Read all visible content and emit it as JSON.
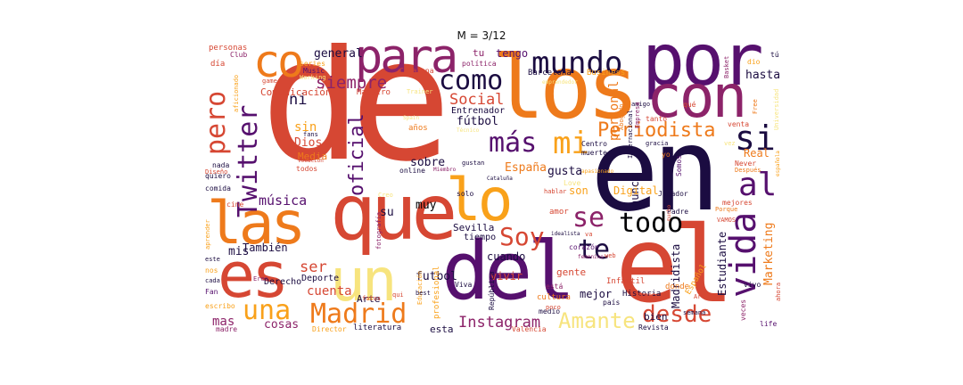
{
  "title": "M = 3/12",
  "palette": {
    "darkest": "#1b0c41",
    "purple": "#56106e",
    "magenta": "#8c2369",
    "red": "#d64733",
    "orange": "#ee7a1b",
    "amber": "#f9a11a",
    "yellow": "#f7e47e",
    "black": "#000004"
  },
  "words": [
    {
      "text": "de",
      "color": "#d64733"
    },
    {
      "text": "en",
      "color": "#1b0c41"
    },
    {
      "text": "los",
      "color": "#ee7a1b"
    },
    {
      "text": "por",
      "color": "#56106e"
    },
    {
      "text": "con",
      "color": "#8c2369"
    },
    {
      "text": "el",
      "color": "#d64733"
    },
    {
      "text": "del",
      "color": "#56106e"
    },
    {
      "text": "que",
      "color": "#d64733"
    },
    {
      "text": "las",
      "color": "#ee7a1b"
    },
    {
      "text": "es",
      "color": "#d64733"
    },
    {
      "text": "un",
      "color": "#f7e47e"
    },
    {
      "text": "lo",
      "color": "#f9a11a"
    },
    {
      "text": "para",
      "color": "#8c2369"
    },
    {
      "text": "co",
      "color": "#ee7a1b"
    },
    {
      "text": "mundo",
      "color": "#1b0c41"
    },
    {
      "text": "como",
      "color": "#1b0c41"
    },
    {
      "text": "pero",
      "color": "#d64733"
    },
    {
      "text": "Twitter",
      "color": "#56106e"
    },
    {
      "text": "más",
      "color": "#56106e"
    },
    {
      "text": "mi",
      "color": "#f9a11a"
    },
    {
      "text": "si",
      "color": "#1b0c41"
    },
    {
      "text": "al",
      "color": "#56106e"
    },
    {
      "text": "vida",
      "color": "#56106e"
    },
    {
      "text": "todo",
      "color": "#000004"
    },
    {
      "text": "se",
      "color": "#8c2369"
    },
    {
      "text": "te",
      "color": "#1b0c41"
    },
    {
      "text": "Soy",
      "color": "#d64733"
    },
    {
      "text": "Madrid",
      "color": "#ee7a1b"
    },
    {
      "text": "una",
      "color": "#f9a11a"
    },
    {
      "text": "desde",
      "color": "#d64733"
    },
    {
      "text": "Amante",
      "color": "#f7e47e"
    },
    {
      "text": "Periodista",
      "color": "#ee7a1b"
    },
    {
      "text": "oficial",
      "color": "#56106e"
    },
    {
      "text": "Instagram",
      "color": "#8c2369"
    },
    {
      "text": "siempre",
      "color": "#8c2369"
    },
    {
      "text": "Social",
      "color": "#d64733"
    },
    {
      "text": "ni",
      "color": "#1b0c41"
    },
    {
      "text": "general",
      "color": "#1b0c41"
    },
    {
      "text": "tengo",
      "color": "#56106e"
    },
    {
      "text": "tu",
      "color": "#8c2369"
    },
    {
      "text": "hasta",
      "color": "#1b0c41"
    },
    {
      "text": "personal",
      "color": "#ee7a1b"
    },
    {
      "text": "Comunicación",
      "color": "#d64733"
    },
    {
      "text": "Maestro",
      "color": "#d64733"
    },
    {
      "text": "Entrenador",
      "color": "#1b0c41"
    },
    {
      "text": "fútbol",
      "color": "#1b0c41"
    },
    {
      "text": "sin",
      "color": "#f9a11a"
    },
    {
      "text": "Dios",
      "color": "#d64733"
    },
    {
      "text": "Media",
      "color": "#ee7a1b"
    },
    {
      "text": "sobre",
      "color": "#1b0c41"
    },
    {
      "text": "España",
      "color": "#ee7a1b"
    },
    {
      "text": "gusta",
      "color": "#1b0c41"
    },
    {
      "text": "muy",
      "color": "#000004"
    },
    {
      "text": "música",
      "color": "#56106e"
    },
    {
      "text": "su",
      "color": "#1b0c41"
    },
    {
      "text": "vivir",
      "color": "#d64733"
    },
    {
      "text": "También",
      "color": "#1b0c41"
    },
    {
      "text": "mis",
      "color": "#1b0c41"
    },
    {
      "text": "ser",
      "color": "#d64733"
    },
    {
      "text": "cuenta",
      "color": "#d64733"
    },
    {
      "text": "mas",
      "color": "#8c2369"
    },
    {
      "text": "cosas",
      "color": "#8c2369"
    },
    {
      "text": "futbol",
      "color": "#1b0c41"
    },
    {
      "text": "Sevilla",
      "color": "#1b0c41"
    },
    {
      "text": "cuando",
      "color": "#1b0c41"
    },
    {
      "text": "mejor",
      "color": "#1b0c41"
    },
    {
      "text": "bien",
      "color": "#1b0c41"
    },
    {
      "text": "Estudiante",
      "color": "#1b0c41"
    },
    {
      "text": "Madridista",
      "color": "#1b0c41"
    },
    {
      "text": "Real",
      "color": "#ee7a1b"
    },
    {
      "text": "Marketing",
      "color": "#ee7a1b"
    },
    {
      "text": "nunca",
      "color": "#1b0c41"
    },
    {
      "text": "gente",
      "color": "#d64733"
    },
    {
      "text": "Digital",
      "color": "#f9a11a"
    },
    {
      "text": "esta",
      "color": "#1b0c41"
    },
    {
      "text": "Arte",
      "color": "#1b0c41"
    },
    {
      "text": "Derecho",
      "color": "#1b0c41"
    },
    {
      "text": "Deporte",
      "color": "#1b0c41"
    },
    {
      "text": "literatura",
      "color": "#1b0c41"
    },
    {
      "text": "profesional",
      "color": "#f9a11a"
    },
    {
      "text": "Historia",
      "color": "#1b0c41"
    },
    {
      "text": "online",
      "color": "#1b0c41"
    },
    {
      "text": "Barcelona",
      "color": "#1b0c41"
    },
    {
      "text": "Business",
      "color": "#f9a11a"
    },
    {
      "text": "Club",
      "color": "#8c2369"
    },
    {
      "text": "Music",
      "color": "#56106e"
    },
    {
      "text": "Catalana",
      "color": "#d64733"
    },
    {
      "text": "personas",
      "color": "#d64733"
    },
    {
      "text": "día",
      "color": "#d64733"
    },
    {
      "text": "series",
      "color": "#f9a11a"
    },
    {
      "text": "gamer",
      "color": "#d64733"
    },
    {
      "text": "política",
      "color": "#8c2369"
    },
    {
      "text": "Trainer",
      "color": "#f7e47e"
    },
    {
      "text": "años",
      "color": "#ee7a1b"
    },
    {
      "text": "Centro",
      "color": "#1b0c41"
    },
    {
      "text": "muerte",
      "color": "#1b0c41"
    },
    {
      "text": "tanto",
      "color": "#d64733"
    },
    {
      "text": "amigo",
      "color": "#1b0c41"
    },
    {
      "text": "gracia",
      "color": "#1b0c41"
    },
    {
      "text": "venta",
      "color": "#d64733"
    },
    {
      "text": "Never",
      "color": "#d64733"
    },
    {
      "text": "Después",
      "color": "#ee7a1b"
    },
    {
      "text": "Somos",
      "color": "#56106e"
    },
    {
      "text": "Jugador",
      "color": "#1b0c41"
    },
    {
      "text": "Padre",
      "color": "#1b0c41"
    },
    {
      "text": "mejores",
      "color": "#d64733"
    },
    {
      "text": "nada",
      "color": "#1b0c41"
    },
    {
      "text": "quiero",
      "color": "#1b0c41"
    },
    {
      "text": "comida",
      "color": "#1b0c41"
    },
    {
      "text": "Diseño",
      "color": "#d64733"
    },
    {
      "text": "cine",
      "color": "#d64733"
    },
    {
      "text": "todos",
      "color": "#d64733"
    },
    {
      "text": "fans",
      "color": "#1b0c41"
    },
    {
      "text": "Fan",
      "color": "#56106e"
    },
    {
      "text": "cada",
      "color": "#1b0c41"
    },
    {
      "text": "escribo",
      "color": "#f9a11a"
    },
    {
      "text": "madre",
      "color": "#8c2369"
    },
    {
      "text": "fotografía",
      "color": "#8c2369"
    },
    {
      "text": "Director",
      "color": "#f9a11a"
    },
    {
      "text": "Viva",
      "color": "#1b0c41"
    },
    {
      "text": "República",
      "color": "#1b0c41"
    },
    {
      "text": "Valencia",
      "color": "#d64733"
    },
    {
      "text": "Revista",
      "color": "#1b0c41"
    },
    {
      "text": "cultura",
      "color": "#ee7a1b"
    },
    {
      "text": "Infantil",
      "color": "#d64733"
    },
    {
      "text": "donde",
      "color": "#ee7a1b"
    },
    {
      "text": "veces",
      "color": "#8c2369"
    },
    {
      "text": "vivo",
      "color": "#1b0c41"
    },
    {
      "text": "life",
      "color": "#56106e"
    },
    {
      "text": "ahora",
      "color": "#d64733"
    },
    {
      "text": "Basket",
      "color": "#8c2369"
    },
    {
      "text": "semana",
      "color": "#1b0c41"
    },
    {
      "text": "medio",
      "color": "#1b0c41"
    },
    {
      "text": "país",
      "color": "#1b0c41"
    },
    {
      "text": "está",
      "color": "#8c2369"
    },
    {
      "text": "corazón",
      "color": "#56106e"
    },
    {
      "text": "amor",
      "color": "#d64733"
    },
    {
      "text": "son",
      "color": "#f9a11a"
    },
    {
      "text": "tiempo",
      "color": "#1b0c41"
    },
    {
      "text": "solo",
      "color": "#1b0c41"
    },
    {
      "text": "poco",
      "color": "#d64733"
    },
    {
      "text": "Educación",
      "color": "#f9a11a"
    },
    {
      "text": "Español",
      "color": "#f9a11a"
    },
    {
      "text": "Internacional",
      "color": "#1b0c41"
    },
    {
      "text": "Empresa",
      "color": "#8c2369"
    },
    {
      "text": "Abogado",
      "color": "#ee7a1b"
    },
    {
      "text": "qué",
      "color": "#d64733"
    },
    {
      "text": "aficionado",
      "color": "#f9a11a"
    },
    {
      "text": "Working",
      "color": "#f7e47e"
    },
    {
      "text": "vocación",
      "color": "#d64733"
    },
    {
      "text": "aprender",
      "color": "#f9a11a"
    },
    {
      "text": "este",
      "color": "#1b0c41"
    },
    {
      "text": "nos",
      "color": "#f9a11a"
    },
    {
      "text": "Eres",
      "color": "#8c2369"
    },
    {
      "text": "fotos",
      "color": "#d64733"
    },
    {
      "text": "qui",
      "color": "#d64733"
    },
    {
      "text": "best",
      "color": "#1b0c41"
    },
    {
      "text": "sense",
      "color": "#d64733"
    },
    {
      "text": "Art",
      "color": "#d64733"
    },
    {
      "text": "VAMOS",
      "color": "#d64733"
    },
    {
      "text": "Free",
      "color": "#ee7a1b"
    },
    {
      "text": "Universidad",
      "color": "#f7e47e"
    },
    {
      "text": "española",
      "color": "#f9a11a"
    },
    {
      "text": "Love",
      "color": "#f7e47e"
    },
    {
      "text": "Creo",
      "color": "#f7e47e"
    },
    {
      "text": "hablar",
      "color": "#d64733"
    },
    {
      "text": "Cataluña",
      "color": "#1b0c41"
    },
    {
      "text": "gustan",
      "color": "#1b0c41"
    },
    {
      "text": "Miembro",
      "color": "#8c2369"
    },
    {
      "text": "Técnico",
      "color": "#f7e47e"
    },
    {
      "text": "Spain",
      "color": "#f7e47e"
    },
    {
      "text": "idealista",
      "color": "#1b0c41"
    },
    {
      "text": "femenino",
      "color": "#8c2369"
    },
    {
      "text": "mucho",
      "color": "#d64733"
    },
    {
      "text": "Porque",
      "color": "#ee7a1b"
    },
    {
      "text": "tú",
      "color": "#1b0c41"
    },
    {
      "text": "dio",
      "color": "#f9a11a"
    },
    {
      "text": "vez",
      "color": "#f7e47e"
    },
    {
      "text": "yo",
      "color": "#ee7a1b"
    },
    {
      "text": "va",
      "color": "#d64733"
    },
    {
      "text": "emprendedor",
      "color": "#f7e47e"
    },
    {
      "text": "apasionado",
      "color": "#f9a11a"
    },
    {
      "text": "web",
      "color": "#d64733"
    }
  ]
}
